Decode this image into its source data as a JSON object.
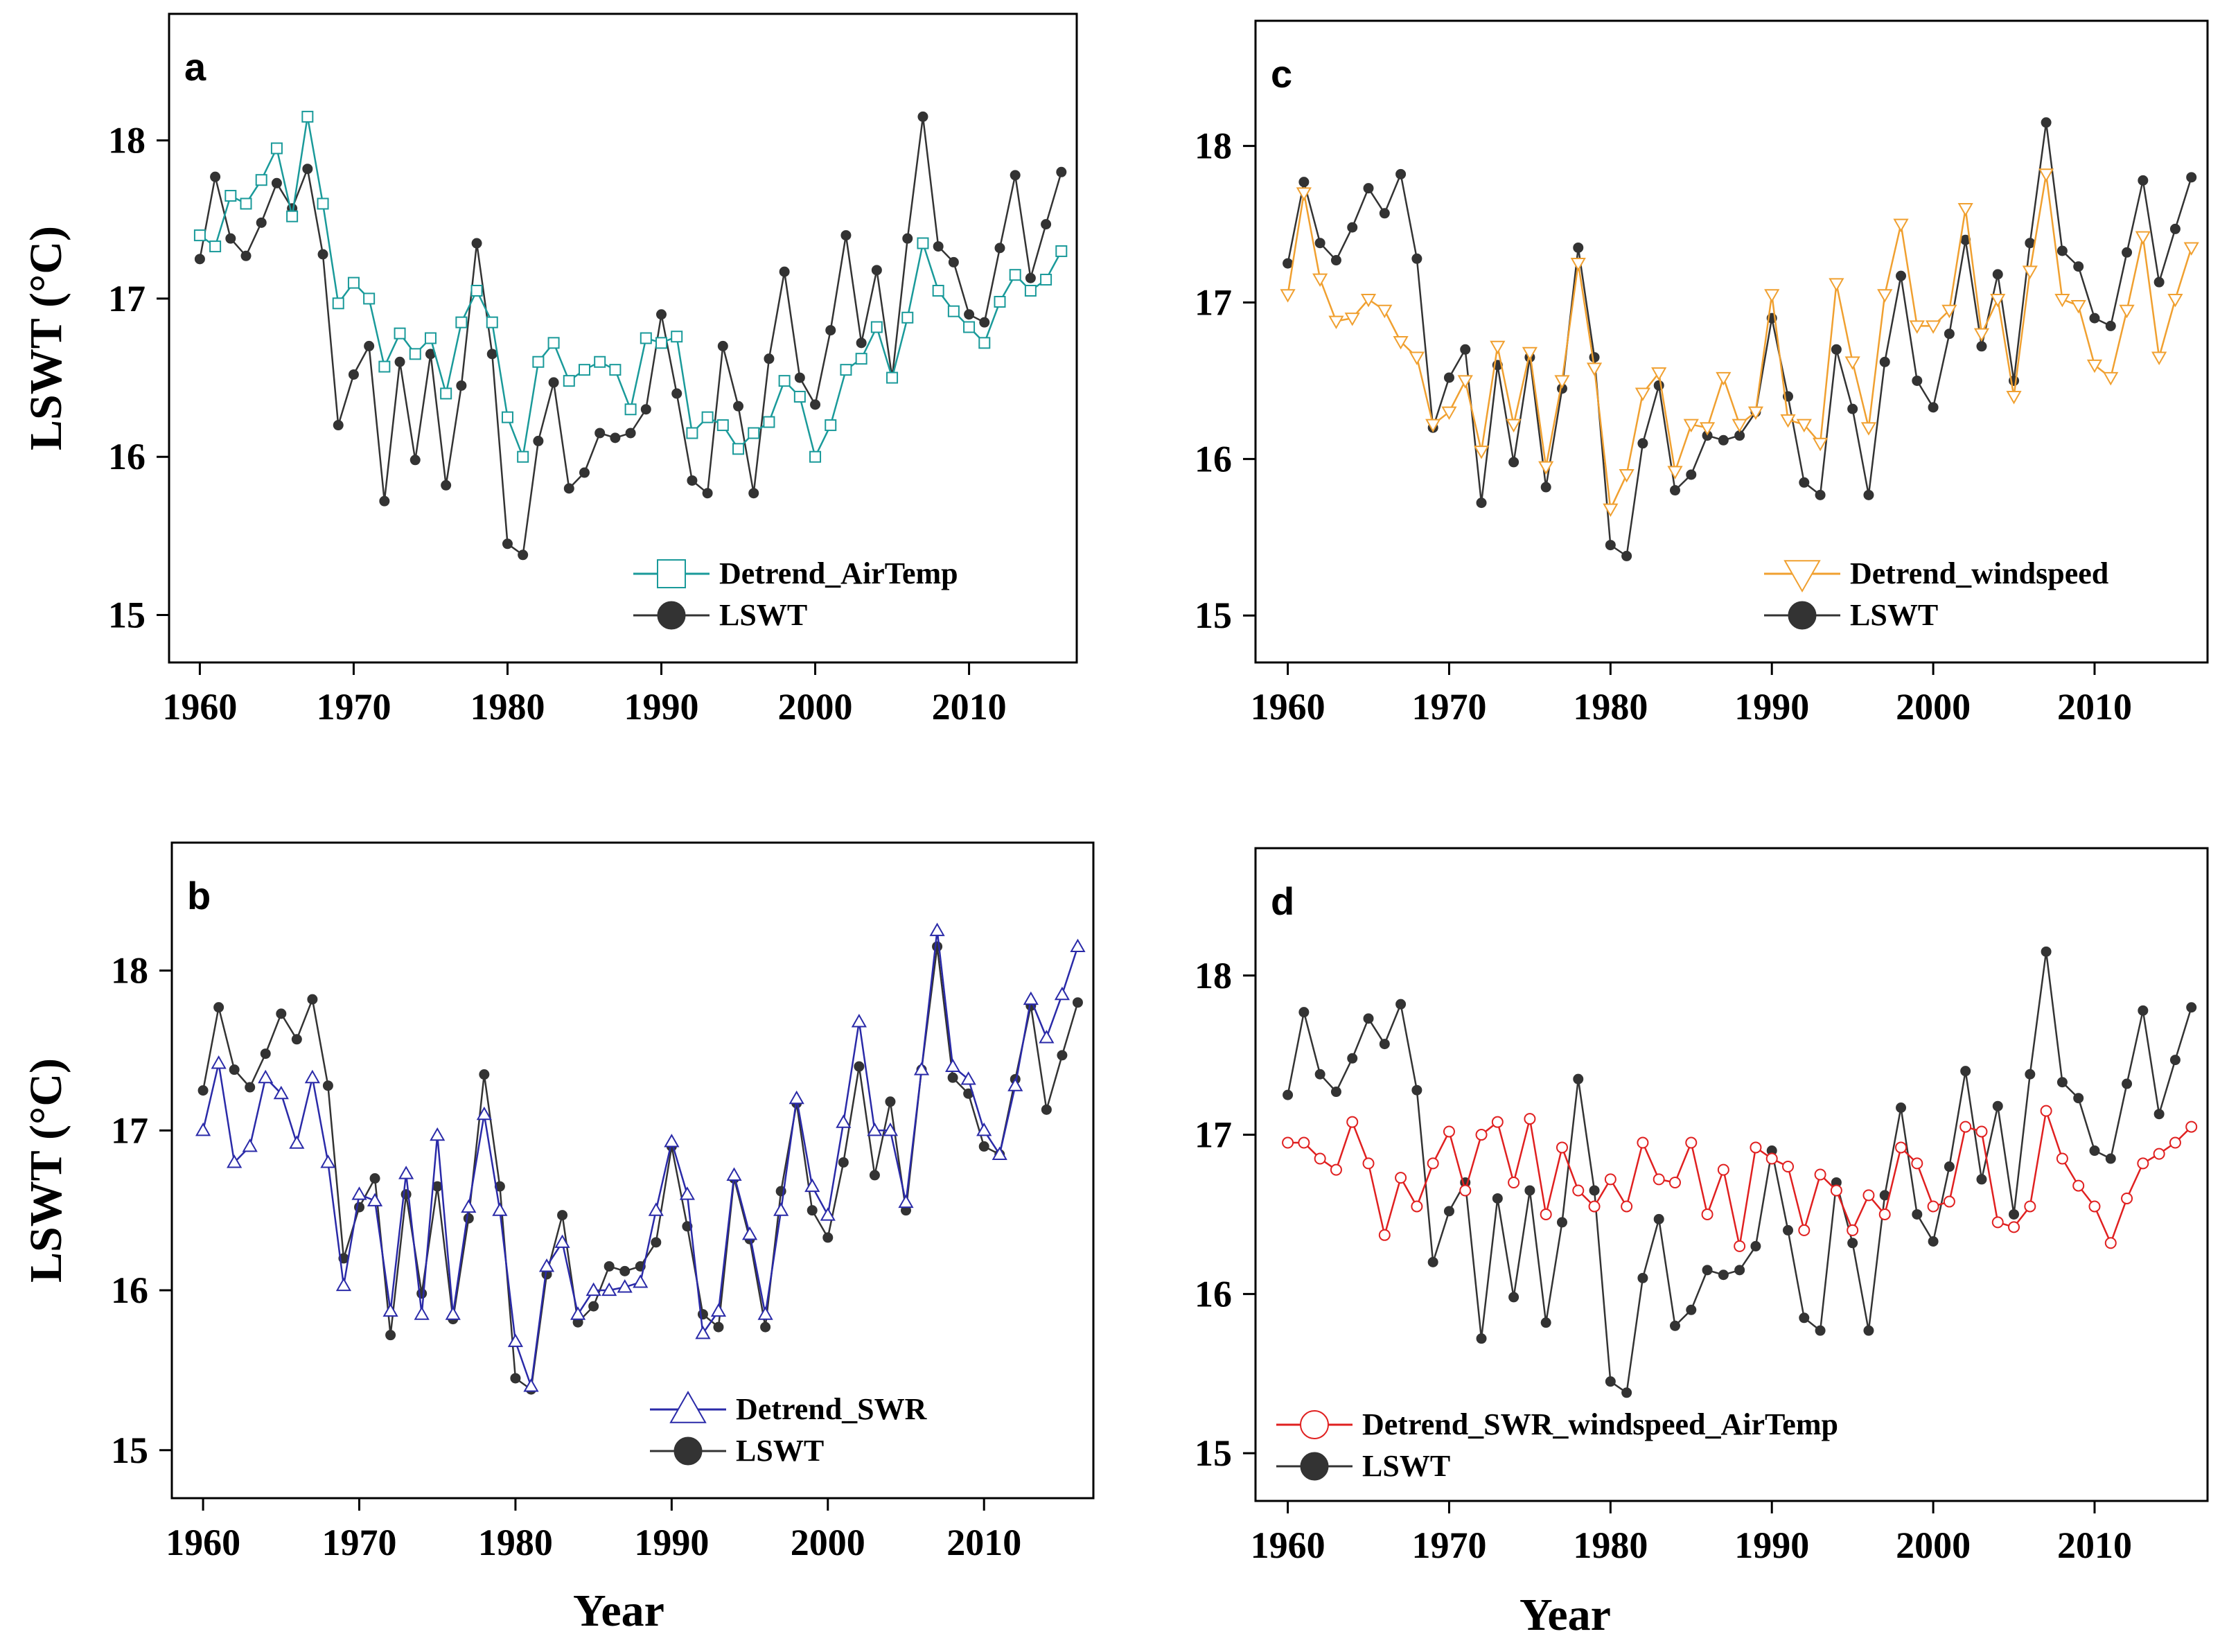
{
  "figure": {
    "ylabel": "LSWT (°C)",
    "xlabel": "Year"
  },
  "chart_data": [
    {
      "type": "line",
      "panel": "a",
      "xlabel": "",
      "ylabel": "LSWT (°C)",
      "xlim": [
        1958,
        2017
      ],
      "ylim": [
        14.7,
        18.8
      ],
      "xticks": [
        1960,
        1970,
        1980,
        1990,
        2000,
        2010
      ],
      "yticks": [
        15,
        16,
        17,
        18
      ],
      "legend_position": "bottom-right",
      "x_start": 1960,
      "series": [
        {
          "name": "Detrend_AirTemp",
          "color": "#1a9a9a",
          "marker": "square",
          "values": [
            17.4,
            17.33,
            17.65,
            17.6,
            17.75,
            17.95,
            17.52,
            18.15,
            17.6,
            16.97,
            17.1,
            17.0,
            16.57,
            16.78,
            16.65,
            16.75,
            16.4,
            16.85,
            17.05,
            16.85,
            16.25,
            16.0,
            16.6,
            16.72,
            16.48,
            16.55,
            16.6,
            16.55,
            16.3,
            16.75,
            16.72,
            16.76,
            16.15,
            16.25,
            16.2,
            16.05,
            16.15,
            16.22,
            16.48,
            16.38,
            16.0,
            16.2,
            16.55,
            16.62,
            16.82,
            16.5,
            16.88,
            17.35,
            17.05,
            16.92,
            16.82,
            16.72,
            16.98,
            17.15,
            17.05,
            17.12,
            17.3
          ]
        },
        {
          "name": "LSWT",
          "color": "#333333",
          "marker": "circle",
          "values": [
            17.25,
            17.77,
            17.38,
            17.27,
            17.48,
            17.73,
            17.57,
            17.82,
            17.28,
            16.2,
            16.52,
            16.7,
            15.72,
            16.6,
            15.98,
            16.65,
            15.82,
            16.45,
            17.35,
            16.65,
            15.45,
            15.38,
            16.1,
            16.47,
            15.8,
            15.9,
            16.15,
            16.12,
            16.15,
            16.3,
            16.9,
            16.4,
            15.85,
            15.77,
            16.7,
            16.32,
            15.77,
            16.62,
            17.17,
            16.5,
            16.33,
            16.8,
            17.4,
            16.72,
            17.18,
            16.5,
            17.38,
            18.15,
            17.33,
            17.23,
            16.9,
            16.85,
            17.32,
            17.78,
            17.13,
            17.47,
            17.8
          ]
        }
      ]
    },
    {
      "type": "line",
      "panel": "b",
      "xlabel": "Year",
      "ylabel": "LSWT (°C)",
      "xlim": [
        1958,
        2017
      ],
      "ylim": [
        14.7,
        18.8
      ],
      "xticks": [
        1960,
        1970,
        1980,
        1990,
        2000,
        2010
      ],
      "yticks": [
        15,
        16,
        17,
        18
      ],
      "legend_position": "bottom-right",
      "x_start": 1960,
      "series": [
        {
          "name": "Detrend_SWR",
          "color": "#2a2aa8",
          "marker": "triangle-up",
          "values": [
            17.0,
            17.42,
            16.8,
            16.9,
            17.33,
            17.23,
            16.92,
            17.33,
            16.8,
            16.03,
            16.6,
            16.56,
            15.87,
            16.73,
            15.85,
            16.97,
            15.85,
            16.52,
            17.1,
            16.5,
            15.68,
            15.4,
            16.15,
            16.3,
            15.85,
            16.0,
            16.0,
            16.02,
            16.05,
            16.5,
            16.93,
            16.6,
            15.73,
            15.87,
            16.72,
            16.35,
            15.85,
            16.5,
            17.2,
            16.65,
            16.47,
            17.05,
            17.68,
            17.0,
            17.0,
            16.55,
            17.38,
            18.25,
            17.4,
            17.32,
            17.0,
            16.85,
            17.28,
            17.82,
            17.58,
            17.85,
            18.15
          ]
        },
        {
          "name": "LSWT",
          "color": "#333333",
          "marker": "circle",
          "values": [
            17.25,
            17.77,
            17.38,
            17.27,
            17.48,
            17.73,
            17.57,
            17.82,
            17.28,
            16.2,
            16.52,
            16.7,
            15.72,
            16.6,
            15.98,
            16.65,
            15.82,
            16.45,
            17.35,
            16.65,
            15.45,
            15.38,
            16.1,
            16.47,
            15.8,
            15.9,
            16.15,
            16.12,
            16.15,
            16.3,
            16.9,
            16.4,
            15.85,
            15.77,
            16.7,
            16.32,
            15.77,
            16.62,
            17.17,
            16.5,
            16.33,
            16.8,
            17.4,
            16.72,
            17.18,
            16.5,
            17.38,
            18.15,
            17.33,
            17.23,
            16.9,
            16.85,
            17.32,
            17.78,
            17.13,
            17.47,
            17.8
          ]
        }
      ]
    },
    {
      "type": "line",
      "panel": "c",
      "xlabel": "",
      "ylabel": "",
      "xlim": [
        1958,
        2017
      ],
      "ylim": [
        14.7,
        18.8
      ],
      "xticks": [
        1960,
        1970,
        1980,
        1990,
        2000,
        2010
      ],
      "yticks": [
        15,
        16,
        17,
        18
      ],
      "legend_position": "bottom-right",
      "x_start": 1960,
      "series": [
        {
          "name": "Detrend_windspeed",
          "color": "#f0a030",
          "marker": "triangle-down",
          "values": [
            17.05,
            17.7,
            17.15,
            16.88,
            16.9,
            17.02,
            16.95,
            16.75,
            16.65,
            16.22,
            16.3,
            16.5,
            16.05,
            16.72,
            16.22,
            16.68,
            15.95,
            16.5,
            17.25,
            16.58,
            15.68,
            15.9,
            16.42,
            16.55,
            15.92,
            16.22,
            16.2,
            16.52,
            16.22,
            16.3,
            17.05,
            16.25,
            16.22,
            16.1,
            17.12,
            16.62,
            16.2,
            17.05,
            17.5,
            16.85,
            16.85,
            16.95,
            17.6,
            16.8,
            17.02,
            16.4,
            17.2,
            17.82,
            17.02,
            16.98,
            16.6,
            16.52,
            16.95,
            17.42,
            16.65,
            17.02,
            17.35
          ]
        },
        {
          "name": "LSWT",
          "color": "#333333",
          "marker": "circle",
          "values": [
            17.25,
            17.77,
            17.38,
            17.27,
            17.48,
            17.73,
            17.57,
            17.82,
            17.28,
            16.2,
            16.52,
            16.7,
            15.72,
            16.6,
            15.98,
            16.65,
            15.82,
            16.45,
            17.35,
            16.65,
            15.45,
            15.38,
            16.1,
            16.47,
            15.8,
            15.9,
            16.15,
            16.12,
            16.15,
            16.3,
            16.9,
            16.4,
            15.85,
            15.77,
            16.7,
            16.32,
            15.77,
            16.62,
            17.17,
            16.5,
            16.33,
            16.8,
            17.4,
            16.72,
            17.18,
            16.5,
            17.38,
            18.15,
            17.33,
            17.23,
            16.9,
            16.85,
            17.32,
            17.78,
            17.13,
            17.47,
            17.8
          ]
        }
      ]
    },
    {
      "type": "line",
      "panel": "d",
      "xlabel": "Year",
      "ylabel": "",
      "xlim": [
        1958,
        2017
      ],
      "ylim": [
        14.7,
        18.8
      ],
      "xticks": [
        1960,
        1970,
        1980,
        1990,
        2000,
        2010
      ],
      "yticks": [
        15,
        16,
        17,
        18
      ],
      "legend_position": "bottom-left",
      "x_start": 1960,
      "series": [
        {
          "name": "Detrend_SWR_windspeed_AirTemp",
          "color": "#e02020",
          "marker": "circle-open",
          "values": [
            16.95,
            16.95,
            16.85,
            16.78,
            17.08,
            16.82,
            16.37,
            16.73,
            16.55,
            16.82,
            17.02,
            16.65,
            17.0,
            17.08,
            16.7,
            17.1,
            16.5,
            16.92,
            16.65,
            16.55,
            16.72,
            16.55,
            16.95,
            16.72,
            16.7,
            16.95,
            16.5,
            16.78,
            16.3,
            16.92,
            16.85,
            16.8,
            16.4,
            16.75,
            16.65,
            16.4,
            16.62,
            16.5,
            16.92,
            16.82,
            16.55,
            16.58,
            17.05,
            17.02,
            16.45,
            16.42,
            16.55,
            17.15,
            16.85,
            16.68,
            16.55,
            16.32,
            16.6,
            16.82,
            16.88,
            16.95,
            17.05
          ]
        },
        {
          "name": "LSWT",
          "color": "#333333",
          "marker": "circle",
          "values": [
            17.25,
            17.77,
            17.38,
            17.27,
            17.48,
            17.73,
            17.57,
            17.82,
            17.28,
            16.2,
            16.52,
            16.7,
            15.72,
            16.6,
            15.98,
            16.65,
            15.82,
            16.45,
            17.35,
            16.65,
            15.45,
            15.38,
            16.1,
            16.47,
            15.8,
            15.9,
            16.15,
            16.12,
            16.15,
            16.3,
            16.9,
            16.4,
            15.85,
            15.77,
            16.7,
            16.32,
            15.77,
            16.62,
            17.17,
            16.5,
            16.33,
            16.8,
            17.4,
            16.72,
            17.18,
            16.5,
            17.38,
            18.15,
            17.33,
            17.23,
            16.9,
            16.85,
            17.32,
            17.78,
            17.13,
            17.47,
            17.8
          ]
        }
      ]
    }
  ]
}
